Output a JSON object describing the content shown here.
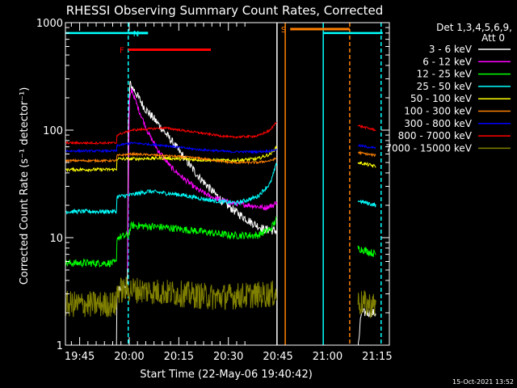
{
  "chart_data": {
    "type": "line",
    "title": "RHESSI Observing Summary Count Rates, Corrected",
    "xlabel": "Start Time (22-May-06 19:40:42)",
    "ylabel": "Corrected Count Rate (s⁻¹ detector⁻¹)",
    "yscale": "log",
    "ylim": [
      1,
      1000
    ],
    "xlim_minutes": [
      0,
      98
    ],
    "x_unit": "minutes after 19:40:42",
    "x_ticks": [
      {
        "t": 4.3,
        "label": "19:45"
      },
      {
        "t": 19.3,
        "label": "20:00"
      },
      {
        "t": 34.3,
        "label": "20:15"
      },
      {
        "t": 49.3,
        "label": "20:30"
      },
      {
        "t": 64.3,
        "label": "20:45"
      },
      {
        "t": 79.3,
        "label": "21:00"
      },
      {
        "t": 94.3,
        "label": "21:15"
      }
    ],
    "y_ticks": [
      {
        "v": 1,
        "label": "1"
      },
      {
        "v": 10,
        "label": "10"
      },
      {
        "v": 100,
        "label": "100"
      },
      {
        "v": 1000,
        "label": "1000"
      }
    ],
    "legend_header": [
      "Det 1,3,4,5,6,9,",
      "Att 0"
    ],
    "legend_position": "right",
    "footer_date": "15-Oct-2021 13:52",
    "flags": [
      {
        "label": "N",
        "color": "#00ffff",
        "t0": 19.0,
        "t1": 25.0,
        "level": 800
      },
      {
        "label": "F",
        "color": "#ff0000",
        "t0": 19.0,
        "t1": 44.0,
        "level": 560
      },
      {
        "label": "S",
        "color": "#ff8000",
        "t0": 68.0,
        "t1": 86.0,
        "level": 870
      }
    ],
    "flag_bars": [
      {
        "color": "#00ffff",
        "t0": 0,
        "t1": 19,
        "level": 800
      },
      {
        "color": "#00ffff",
        "t0": 78,
        "t1": 96,
        "level": 800
      }
    ],
    "vertical_lines": [
      {
        "t": 19.0,
        "color": "#00ffff",
        "style": "dashed"
      },
      {
        "t": 64.0,
        "color": "#ffffff",
        "style": "solid"
      },
      {
        "t": 66.5,
        "color": "#ff8000",
        "style": "solid"
      },
      {
        "t": 78.0,
        "color": "#00ffff",
        "style": "solid"
      },
      {
        "t": 86.0,
        "color": "#ff8000",
        "style": "dashed"
      },
      {
        "t": 95.5,
        "color": "#00ffff",
        "style": "dashed"
      }
    ],
    "series": [
      {
        "name": "3 - 6 keV",
        "color": "#ffffff",
        "noise": 0.08,
        "points": [
          [
            0,
            0.9
          ],
          [
            15.5,
            0.9
          ],
          [
            15.6,
            3.3
          ],
          [
            18.5,
            3.3
          ],
          [
            18.8,
            3.8
          ],
          [
            19.0,
            100
          ],
          [
            19.5,
            270
          ],
          [
            21,
            230
          ],
          [
            24,
            160
          ],
          [
            28,
            115
          ],
          [
            32,
            80
          ],
          [
            36,
            55
          ],
          [
            40,
            38
          ],
          [
            44,
            28
          ],
          [
            48,
            21
          ],
          [
            52,
            17
          ],
          [
            56,
            14
          ],
          [
            60,
            12
          ],
          [
            64,
            11.5
          ]
        ],
        "points2": [
          [
            88.5,
            0.9
          ],
          [
            89.5,
            2.0
          ],
          [
            94,
            2.0
          ]
        ]
      },
      {
        "name": "6 - 12 keV",
        "color": "#ff00ff",
        "noise": 0.05,
        "points": [
          [
            18.8,
            5
          ],
          [
            19.3,
            180
          ],
          [
            20,
            240
          ],
          [
            22,
            160
          ],
          [
            25,
            95
          ],
          [
            28,
            65
          ],
          [
            32,
            45
          ],
          [
            36,
            35
          ],
          [
            40,
            28
          ],
          [
            44,
            24
          ],
          [
            50,
            21
          ],
          [
            56,
            20
          ],
          [
            60,
            19
          ],
          [
            63,
            20
          ],
          [
            64,
            22
          ]
        ],
        "points2": [
          [
            88.5,
            0.9
          ],
          [
            90,
            0.9
          ],
          [
            94,
            0.9
          ]
        ]
      },
      {
        "name": "12 - 25 keV",
        "color": "#00ff00",
        "noise": 0.07,
        "points": [
          [
            0,
            5.8
          ],
          [
            15.5,
            5.8
          ],
          [
            15.6,
            10
          ],
          [
            19,
            10.5
          ],
          [
            20,
            13
          ],
          [
            30,
            12.5
          ],
          [
            40,
            11.5
          ],
          [
            50,
            10.5
          ],
          [
            58,
            10.5
          ],
          [
            62,
            12
          ],
          [
            64,
            15
          ]
        ],
        "points2": [
          [
            88.5,
            8
          ],
          [
            94,
            7
          ]
        ]
      },
      {
        "name": "25 - 50 keV",
        "color": "#00ffff",
        "noise": 0.04,
        "points": [
          [
            0,
            17.5
          ],
          [
            15.5,
            17.5
          ],
          [
            15.6,
            24
          ],
          [
            20,
            25
          ],
          [
            25,
            27
          ],
          [
            35,
            25
          ],
          [
            45,
            22
          ],
          [
            52,
            21
          ],
          [
            58,
            24
          ],
          [
            62,
            32
          ],
          [
            64,
            50
          ]
        ],
        "points2": [
          [
            88.5,
            22
          ],
          [
            94,
            20
          ]
        ]
      },
      {
        "name": "50 - 100 keV",
        "color": "#ffff00",
        "noise": 0.03,
        "points": [
          [
            0,
            43
          ],
          [
            15.5,
            43
          ],
          [
            15.6,
            54
          ],
          [
            20,
            54
          ],
          [
            30,
            55
          ],
          [
            40,
            53
          ],
          [
            50,
            52
          ],
          [
            58,
            54
          ],
          [
            62,
            60
          ],
          [
            64,
            70
          ]
        ],
        "points2": [
          [
            88.5,
            50
          ],
          [
            94,
            46
          ]
        ]
      },
      {
        "name": "100 - 300 keV",
        "color": "#ff8000",
        "noise": 0.02,
        "points": [
          [
            0,
            52
          ],
          [
            15.5,
            52
          ],
          [
            15.6,
            58
          ],
          [
            20,
            60
          ],
          [
            30,
            58
          ],
          [
            40,
            55
          ],
          [
            50,
            50
          ],
          [
            58,
            50
          ],
          [
            62,
            52
          ],
          [
            64,
            55
          ]
        ],
        "points2": [
          [
            88.5,
            62
          ],
          [
            94,
            58
          ]
        ]
      },
      {
        "name": "300 - 800 keV",
        "color": "#0000ff",
        "noise": 0.02,
        "points": [
          [
            0,
            64
          ],
          [
            15.5,
            64
          ],
          [
            15.6,
            72
          ],
          [
            20,
            76
          ],
          [
            30,
            72
          ],
          [
            40,
            66
          ],
          [
            50,
            63
          ],
          [
            58,
            63
          ],
          [
            62,
            64
          ],
          [
            64,
            66
          ]
        ],
        "points2": [
          [
            88.5,
            72
          ],
          [
            94,
            68
          ]
        ]
      },
      {
        "name": "800 - 7000 keV",
        "color": "#ff0000",
        "noise": 0.02,
        "points": [
          [
            0,
            76
          ],
          [
            15.5,
            76
          ],
          [
            15.6,
            90
          ],
          [
            20,
            100
          ],
          [
            30,
            105
          ],
          [
            40,
            95
          ],
          [
            50,
            86
          ],
          [
            58,
            88
          ],
          [
            62,
            100
          ],
          [
            64,
            122
          ]
        ],
        "points2": [
          [
            88.5,
            110
          ],
          [
            94,
            100
          ]
        ]
      },
      {
        "name": "7000 - 15000 keV",
        "color": "#808000",
        "noise": 0.25,
        "points": [
          [
            0,
            2.4
          ],
          [
            15.5,
            2.4
          ],
          [
            15.6,
            3.2
          ],
          [
            19,
            3.3
          ],
          [
            25,
            3.2
          ],
          [
            35,
            3.0
          ],
          [
            45,
            2.8
          ],
          [
            55,
            2.9
          ],
          [
            64,
            3.0
          ]
        ],
        "points2": [
          [
            88.5,
            2.5
          ],
          [
            94,
            2.3
          ]
        ]
      }
    ]
  }
}
